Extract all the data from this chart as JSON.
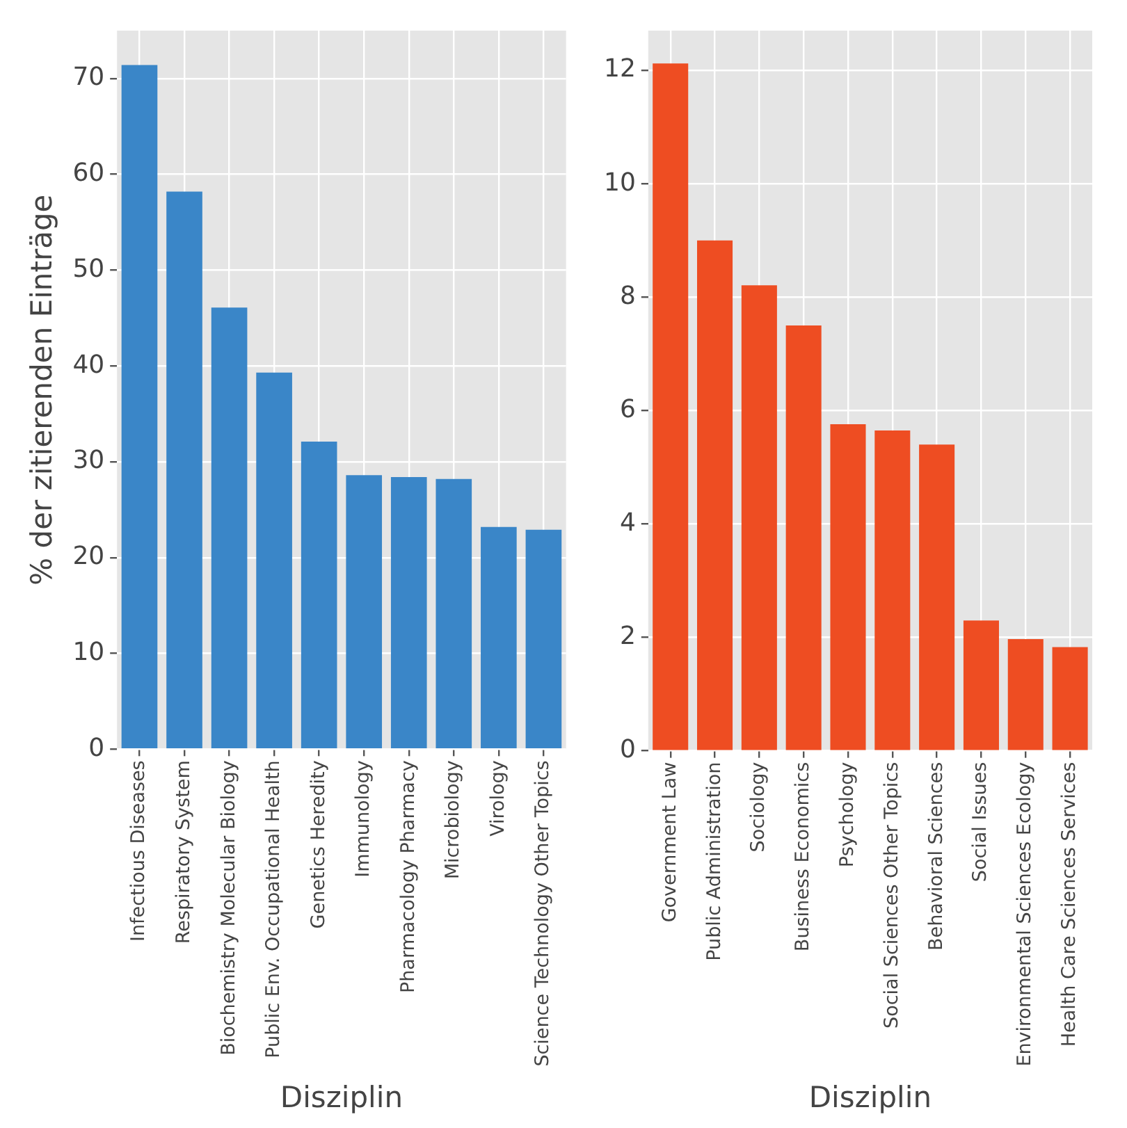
{
  "chart_data": [
    {
      "type": "bar",
      "ylabel": "% der zitierenden Einträge",
      "xlabel": "Disziplin",
      "categories": [
        "Infectious Diseases",
        "Respiratory System",
        "Biochemistry Molecular Biology",
        "Public Env. Occupational Health",
        "Genetics Heredity",
        "Immunology",
        "Pharmacology Pharmacy",
        "Microbiology",
        "Virology",
        "Science Technology Other Topics"
      ],
      "values": [
        71.4,
        58.2,
        46.1,
        39.3,
        32.1,
        28.6,
        28.4,
        28.2,
        23.2,
        22.9
      ],
      "color": "#3a86c8",
      "ylim": [
        0,
        75
      ],
      "yticks": [
        0,
        10,
        20,
        30,
        40,
        50,
        60,
        70
      ],
      "grid": true
    },
    {
      "type": "bar",
      "xlabel": "Disziplin",
      "categories": [
        "Government Law",
        "Public Administration",
        "Sociology",
        "Business Economics",
        "Psychology",
        "Social Sciences Other Topics",
        "Behavioral Sciences",
        "Social Issues",
        "Environmental Sciences Ecology",
        "Health Care Sciences Services"
      ],
      "values": [
        12.12,
        9.0,
        8.21,
        7.5,
        5.76,
        5.65,
        5.4,
        2.3,
        1.97,
        1.83
      ],
      "color": "#ee4d22",
      "ylim": [
        0,
        12.7
      ],
      "yticks": [
        0,
        2,
        4,
        6,
        8,
        10,
        12
      ],
      "grid": true
    }
  ]
}
